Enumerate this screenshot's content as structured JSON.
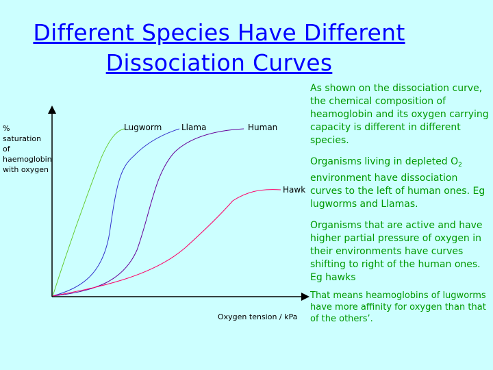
{
  "title_line1": "Different Species Have Different",
  "title_line2": "Dissociation Curves",
  "chart_data": {
    "type": "line",
    "ylabel": [
      "%",
      "saturation",
      "of",
      "haemoglobin",
      "with oxygen"
    ],
    "xlabel": "Oxygen tension / kPa",
    "series": [
      {
        "name": "Lugworm",
        "color": "#66cc33"
      },
      {
        "name": "Llama",
        "color": "#3333cc"
      },
      {
        "name": "Human",
        "color": "#660099"
      },
      {
        "name": "Hawk",
        "color": "#ff0066"
      }
    ]
  },
  "notes": {
    "p1": "As shown on the dissociation curve, the chemical composition of heamoglobin and its oxygen carrying capacity is different in different species.",
    "p2_pre": "Organisms living in depleted O",
    "p2_sub": "2",
    "p2_post": " environment have dissociation curves to the left of human ones. Eg lugworms and Llamas.",
    "p3": "Organisms that are active and have higher partial pressure of oxygen in their environments have curves shifting to right of the human ones. Eg hawks",
    "p4": "That means heamoglobins of lugworms have more affinity for oxygen than that of the others’."
  },
  "colors": {
    "background": "#ccffff",
    "title": "#0000ff",
    "notes": "#009900"
  }
}
